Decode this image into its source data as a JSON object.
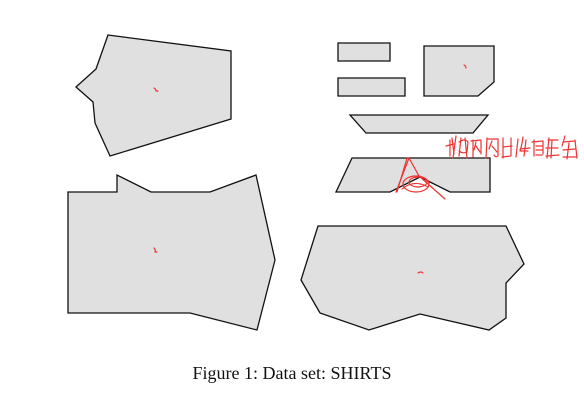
{
  "figure": {
    "caption": "Figure 1: Data set: SHIRTS",
    "colors": {
      "piece_fill": "#e0e0e0",
      "piece_stroke": "#111111",
      "annotation": "#ee3333"
    },
    "handwritten_annotation": "判断内凹位置"
  }
}
